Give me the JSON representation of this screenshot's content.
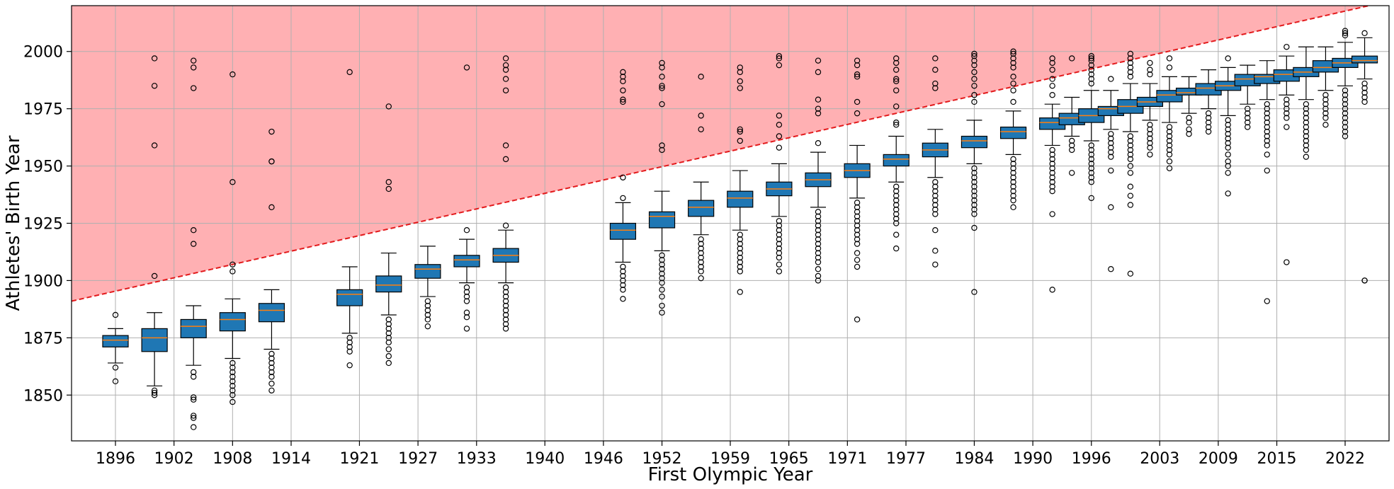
{
  "chart_data": {
    "type": "box",
    "title": "",
    "xlabel": "First Olympic Year",
    "ylabel": "Athletes' Birth Year",
    "xlim": [
      1891.5,
      2026.5
    ],
    "ylim": [
      1830,
      2020
    ],
    "xticks": [
      1896,
      1902,
      1908,
      1914,
      1921,
      1927,
      1933,
      1940,
      1946,
      1952,
      1959,
      1965,
      1971,
      1977,
      1984,
      1990,
      1996,
      2003,
      2009,
      2015,
      2022
    ],
    "yticks": [
      1850,
      1875,
      1900,
      1925,
      1950,
      1975,
      2000
    ],
    "grid": true,
    "colors": {
      "box": "#1f77b4",
      "median": "#ff7f0e",
      "region": "#ffb0b3",
      "line": "#e31a1c"
    },
    "reference_line": {
      "from": [
        1891.5,
        1891
      ],
      "to": [
        2026.5,
        2022
      ],
      "style": "dashed",
      "shade": "above"
    },
    "boxes": [
      {
        "x": 1896,
        "q1": 1871,
        "med": 1874,
        "q3": 1876,
        "wlo": 1864,
        "whi": 1879,
        "fl": [
          1862,
          1856,
          1885
        ]
      },
      {
        "x": 1900,
        "q1": 1869,
        "med": 1875,
        "q3": 1879,
        "wlo": 1854,
        "whi": 1886,
        "fl": [
          1852,
          1851,
          1850,
          1902,
          1959,
          1985,
          1997
        ]
      },
      {
        "x": 1904,
        "q1": 1875,
        "med": 1880,
        "q3": 1883,
        "wlo": 1863,
        "whi": 1889,
        "fl": [
          1860,
          1858,
          1849,
          1848,
          1841,
          1840,
          1836,
          1916,
          1922,
          1984,
          1993,
          1996
        ]
      },
      {
        "x": 1908,
        "q1": 1878,
        "med": 1883,
        "q3": 1886,
        "wlo": 1866,
        "whi": 1892,
        "fl": [
          1864,
          1862,
          1860,
          1858,
          1856,
          1854,
          1852,
          1850,
          1847,
          1904,
          1907,
          1943,
          1990
        ]
      },
      {
        "x": 1912,
        "q1": 1882,
        "med": 1887,
        "q3": 1890,
        "wlo": 1870,
        "whi": 1896,
        "fl": [
          1868,
          1866,
          1864,
          1862,
          1860,
          1858,
          1855,
          1852,
          1932,
          1952,
          1952,
          1965
        ]
      },
      {
        "x": 1920,
        "q1": 1889,
        "med": 1894,
        "q3": 1896,
        "wlo": 1877,
        "whi": 1906,
        "fl": [
          1875,
          1873,
          1871,
          1869,
          1863,
          1991
        ]
      },
      {
        "x": 1924,
        "q1": 1895,
        "med": 1898,
        "q3": 1902,
        "wlo": 1885,
        "whi": 1912,
        "fl": [
          1883,
          1881,
          1879,
          1877,
          1875,
          1873,
          1870,
          1867,
          1864,
          1940,
          1943,
          1976
        ]
      },
      {
        "x": 1928,
        "q1": 1901,
        "med": 1905,
        "q3": 1907,
        "wlo": 1893,
        "whi": 1915,
        "fl": [
          1891,
          1889,
          1887,
          1885,
          1883,
          1880
        ]
      },
      {
        "x": 1932,
        "q1": 1906,
        "med": 1909,
        "q3": 1911,
        "wlo": 1899,
        "whi": 1918,
        "fl": [
          1897,
          1895,
          1893,
          1891,
          1886,
          1884,
          1879,
          1922,
          1993
        ]
      },
      {
        "x": 1936,
        "q1": 1908,
        "med": 1911,
        "q3": 1914,
        "wlo": 1899,
        "whi": 1922,
        "fl": [
          1897,
          1895,
          1893,
          1891,
          1889,
          1887,
          1885,
          1883,
          1881,
          1879,
          1924,
          1953,
          1959,
          1983,
          1988,
          1992,
          1994,
          1997
        ]
      },
      {
        "x": 1948,
        "q1": 1918,
        "med": 1922,
        "q3": 1925,
        "wlo": 1908,
        "whi": 1934,
        "fl": [
          1906,
          1904,
          1902,
          1900,
          1898,
          1896,
          1892,
          1936,
          1945,
          1978,
          1979,
          1983,
          1987,
          1989,
          1991
        ]
      },
      {
        "x": 1952,
        "q1": 1923,
        "med": 1928,
        "q3": 1930,
        "wlo": 1913,
        "whi": 1939,
        "fl": [
          1911,
          1909,
          1907,
          1905,
          1903,
          1901,
          1899,
          1896,
          1893,
          1889,
          1886,
          1957,
          1959,
          1977,
          1984,
          1985,
          1989,
          1993,
          1995
        ]
      },
      {
        "x": 1956,
        "q1": 1928,
        "med": 1932,
        "q3": 1935,
        "wlo": 1920,
        "whi": 1943,
        "fl": [
          1918,
          1916,
          1914,
          1912,
          1910,
          1908,
          1906,
          1904,
          1901,
          1966,
          1972,
          1989
        ]
      },
      {
        "x": 1960,
        "q1": 1932,
        "med": 1936,
        "q3": 1939,
        "wlo": 1922,
        "whi": 1948,
        "fl": [
          1920,
          1918,
          1916,
          1914,
          1912,
          1910,
          1908,
          1906,
          1904,
          1895,
          1961,
          1965,
          1966,
          1984,
          1987,
          1991,
          1993
        ]
      },
      {
        "x": 1964,
        "q1": 1937,
        "med": 1940,
        "q3": 1943,
        "wlo": 1928,
        "whi": 1951,
        "fl": [
          1926,
          1924,
          1922,
          1920,
          1918,
          1916,
          1914,
          1912,
          1910,
          1907,
          1904,
          1958,
          1963,
          1968,
          1972,
          1994,
          1997,
          1998
        ]
      },
      {
        "x": 1968,
        "q1": 1941,
        "med": 1944,
        "q3": 1947,
        "wlo": 1932,
        "whi": 1956,
        "fl": [
          1930,
          1928,
          1926,
          1924,
          1922,
          1920,
          1918,
          1916,
          1914,
          1912,
          1910,
          1908,
          1905,
          1902,
          1900,
          1960,
          1973,
          1975,
          1979,
          1991,
          1996
        ]
      },
      {
        "x": 1972,
        "q1": 1945,
        "med": 1948,
        "q3": 1951,
        "wlo": 1936,
        "whi": 1959,
        "fl": [
          1934,
          1932,
          1930,
          1928,
          1926,
          1924,
          1922,
          1920,
          1918,
          1916,
          1912,
          1909,
          1906,
          1883,
          1973,
          1978,
          1989,
          1990,
          1994,
          1996
        ]
      },
      {
        "x": 1976,
        "q1": 1950,
        "med": 1953,
        "q3": 1955,
        "wlo": 1943,
        "whi": 1963,
        "fl": [
          1941,
          1939,
          1937,
          1935,
          1933,
          1931,
          1929,
          1927,
          1925,
          1920,
          1914,
          1968,
          1969,
          1976,
          1983,
          1987,
          1988,
          1992,
          1995,
          1997
        ]
      },
      {
        "x": 1980,
        "q1": 1954,
        "med": 1957,
        "q3": 1960,
        "wlo": 1945,
        "whi": 1966,
        "fl": [
          1943,
          1941,
          1939,
          1937,
          1935,
          1933,
          1931,
          1929,
          1922,
          1913,
          1907,
          1984,
          1986,
          1992,
          1997
        ]
      },
      {
        "x": 1984,
        "q1": 1958,
        "med": 1961,
        "q3": 1963,
        "wlo": 1951,
        "whi": 1970,
        "fl": [
          1949,
          1947,
          1945,
          1943,
          1941,
          1939,
          1937,
          1935,
          1933,
          1931,
          1929,
          1923,
          1895,
          1978,
          1981,
          1985,
          1988,
          1991,
          1994,
          1996,
          1998,
          1999
        ]
      },
      {
        "x": 1988,
        "q1": 1962,
        "med": 1965,
        "q3": 1967,
        "wlo": 1955,
        "whi": 1974,
        "fl": [
          1953,
          1951,
          1949,
          1947,
          1945,
          1943,
          1941,
          1939,
          1937,
          1935,
          1932,
          1978,
          1983,
          1986,
          1989,
          1993,
          1995,
          1997,
          1999,
          2000
        ]
      },
      {
        "x": 1992,
        "q1": 1966,
        "med": 1969,
        "q3": 1971,
        "wlo": 1959,
        "whi": 1977,
        "fl": [
          1957,
          1955,
          1953,
          1951,
          1949,
          1947,
          1945,
          1943,
          1941,
          1939,
          1929,
          1896,
          1981,
          1985,
          1988,
          1992,
          1995,
          1997
        ]
      },
      {
        "x": 1994,
        "q1": 1968,
        "med": 1971,
        "q3": 1973,
        "wlo": 1963,
        "whi": 1980,
        "fl": [
          1961,
          1959,
          1957,
          1947,
          1997
        ]
      },
      {
        "x": 1996,
        "q1": 1969,
        "med": 1972,
        "q3": 1975,
        "wlo": 1961,
        "whi": 1983,
        "fl": [
          1959,
          1957,
          1955,
          1953,
          1951,
          1949,
          1947,
          1945,
          1943,
          1936,
          1986,
          1988,
          1990,
          1992,
          1994,
          1996,
          1997,
          1998
        ]
      },
      {
        "x": 1998,
        "q1": 1972,
        "med": 1975,
        "q3": 1976,
        "wlo": 1966,
        "whi": 1983,
        "fl": [
          1964,
          1962,
          1960,
          1958,
          1956,
          1954,
          1948,
          1932,
          1905,
          1988
        ]
      },
      {
        "x": 2000,
        "q1": 1973,
        "med": 1976,
        "q3": 1979,
        "wlo": 1965,
        "whi": 1986,
        "fl": [
          1963,
          1961,
          1959,
          1957,
          1955,
          1953,
          1950,
          1947,
          1941,
          1937,
          1933,
          1903,
          1989,
          1991,
          1993,
          1995,
          1997,
          1999
        ]
      },
      {
        "x": 2002,
        "q1": 1976,
        "med": 1978,
        "q3": 1980,
        "wlo": 1970,
        "whi": 1986,
        "fl": [
          1968,
          1966,
          1964,
          1962,
          1960,
          1958,
          1955,
          1990,
          1992,
          1995
        ]
      },
      {
        "x": 2004,
        "q1": 1978,
        "med": 1981,
        "q3": 1983,
        "wlo": 1969,
        "whi": 1989,
        "fl": [
          1967,
          1965,
          1963,
          1961,
          1959,
          1957,
          1955,
          1952,
          1949,
          1993,
          1997
        ]
      },
      {
        "x": 2006,
        "q1": 1981,
        "med": 1982,
        "q3": 1984,
        "wlo": 1973,
        "whi": 1989,
        "fl": [
          1971,
          1969,
          1966,
          1964
        ]
      },
      {
        "x": 2008,
        "q1": 1981,
        "med": 1984,
        "q3": 1986,
        "wlo": 1975,
        "whi": 1992,
        "fl": [
          1973,
          1971,
          1969,
          1967,
          1965
        ]
      },
      {
        "x": 2010,
        "q1": 1983,
        "med": 1985,
        "q3": 1987,
        "wlo": 1972,
        "whi": 1993,
        "fl": [
          1970,
          1968,
          1966,
          1964,
          1962,
          1960,
          1958,
          1955,
          1952,
          1950,
          1947,
          1938,
          1997
        ]
      },
      {
        "x": 2012,
        "q1": 1985,
        "med": 1988,
        "q3": 1990,
        "wlo": 1977,
        "whi": 1994,
        "fl": [
          1975,
          1973,
          1971,
          1969,
          1967
        ]
      },
      {
        "x": 2014,
        "q1": 1986,
        "med": 1989,
        "q3": 1990,
        "wlo": 1979,
        "whi": 1996,
        "fl": [
          1977,
          1975,
          1973,
          1971,
          1969,
          1967,
          1965,
          1963,
          1961,
          1959,
          1955,
          1948,
          1891
        ]
      },
      {
        "x": 2016,
        "q1": 1987,
        "med": 1990,
        "q3": 1992,
        "wlo": 1981,
        "whi": 1998,
        "fl": [
          1979,
          1977,
          1975,
          1973,
          1971,
          1967,
          1908,
          2002
        ]
      },
      {
        "x": 2018,
        "q1": 1989,
        "med": 1991,
        "q3": 1993,
        "wlo": 1979,
        "whi": 2002,
        "fl": [
          1977,
          1975,
          1973,
          1971,
          1969,
          1967,
          1965,
          1963,
          1961,
          1959,
          1957,
          1954
        ]
      },
      {
        "x": 2020,
        "q1": 1991,
        "med": 1993,
        "q3": 1996,
        "wlo": 1983,
        "whi": 2002,
        "fl": [
          1981,
          1979,
          1977,
          1975,
          1973,
          1971,
          1968
        ]
      },
      {
        "x": 2022,
        "q1": 1993,
        "med": 1995,
        "q3": 1997,
        "wlo": 1985,
        "whi": 2004,
        "fl": [
          1983,
          1981,
          1979,
          1977,
          1975,
          1973,
          1971,
          1969,
          1967,
          1965,
          1963,
          2007,
          2008,
          2009
        ]
      },
      {
        "x": 2024,
        "q1": 1995,
        "med": 1996,
        "q3": 1998,
        "wlo": 1988,
        "whi": 2006,
        "fl": [
          1986,
          1984,
          1982,
          1980,
          1978,
          2008,
          1900,
          1900
        ]
      }
    ]
  }
}
